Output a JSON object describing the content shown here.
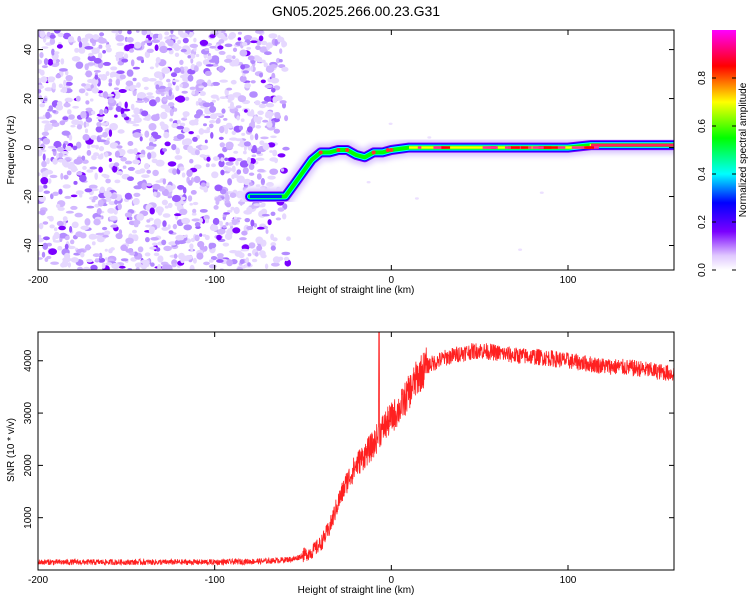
{
  "title": "GN05.2025.266.00.23.G31",
  "chart_data": [
    {
      "type": "heatmap",
      "xlabel": "Height of straight line (km)",
      "ylabel": "Frequency (Hz)",
      "xlim": [
        -200,
        160
      ],
      "ylim": [
        -50,
        48
      ],
      "x_ticks": [
        -200,
        -100,
        0,
        100
      ],
      "y_ticks": [
        -40,
        -20,
        0,
        20,
        40
      ],
      "colorbar": {
        "label": "Normalized spectral amplitude",
        "range": [
          0,
          1
        ],
        "ticks": [
          0.0,
          0.2,
          0.4,
          0.6,
          0.8
        ],
        "colors": [
          "#ffffff",
          "#7a00ff",
          "#0000ff",
          "#00ffff",
          "#00ff00",
          "#ffff00",
          "#ff0000",
          "#ff00ff"
        ]
      },
      "noise_region_x": [
        -200,
        -58
      ],
      "ridge": {
        "x": [
          -80,
          -60,
          -55,
          -50,
          -45,
          -40,
          -35,
          -30,
          -25,
          -20,
          -15,
          -10,
          -5,
          0,
          10,
          30,
          60,
          100,
          113,
          160
        ],
        "y": [
          -20,
          -20,
          -15,
          -10,
          -5,
          -2,
          -2,
          -1,
          -1,
          -3,
          -4,
          -2,
          -2,
          -1,
          0,
          0,
          0,
          0,
          1,
          1
        ]
      }
    },
    {
      "type": "line",
      "xlabel": "Height of straight line (km)",
      "ylabel": "SNR (10 * v/v)",
      "xlim": [
        -200,
        160
      ],
      "ylim": [
        0,
        4550
      ],
      "x_ticks": [
        -200,
        -100,
        0,
        100
      ],
      "y_ticks": [
        1000,
        2000,
        3000,
        4000
      ],
      "line_color": "#ff2020",
      "series": [
        {
          "x": [
            -200,
            -150,
            -100,
            -70,
            -55,
            -45,
            -40,
            -35,
            -30,
            -25,
            -20,
            -15,
            -10,
            -7,
            -5,
            0,
            5,
            10,
            15,
            20,
            30,
            40,
            50,
            60,
            70,
            80,
            90,
            100,
            110,
            120,
            130,
            140,
            150,
            160
          ],
          "values": [
            150,
            150,
            150,
            170,
            210,
            350,
            500,
            800,
            1300,
            1700,
            2000,
            2200,
            2400,
            2600,
            2700,
            2900,
            3100,
            3400,
            3700,
            3900,
            4050,
            4150,
            4200,
            4150,
            4100,
            4080,
            4050,
            4000,
            3950,
            3900,
            3880,
            3850,
            3800,
            3750
          ]
        }
      ],
      "spike": {
        "x": -7,
        "y": 4550
      }
    }
  ]
}
